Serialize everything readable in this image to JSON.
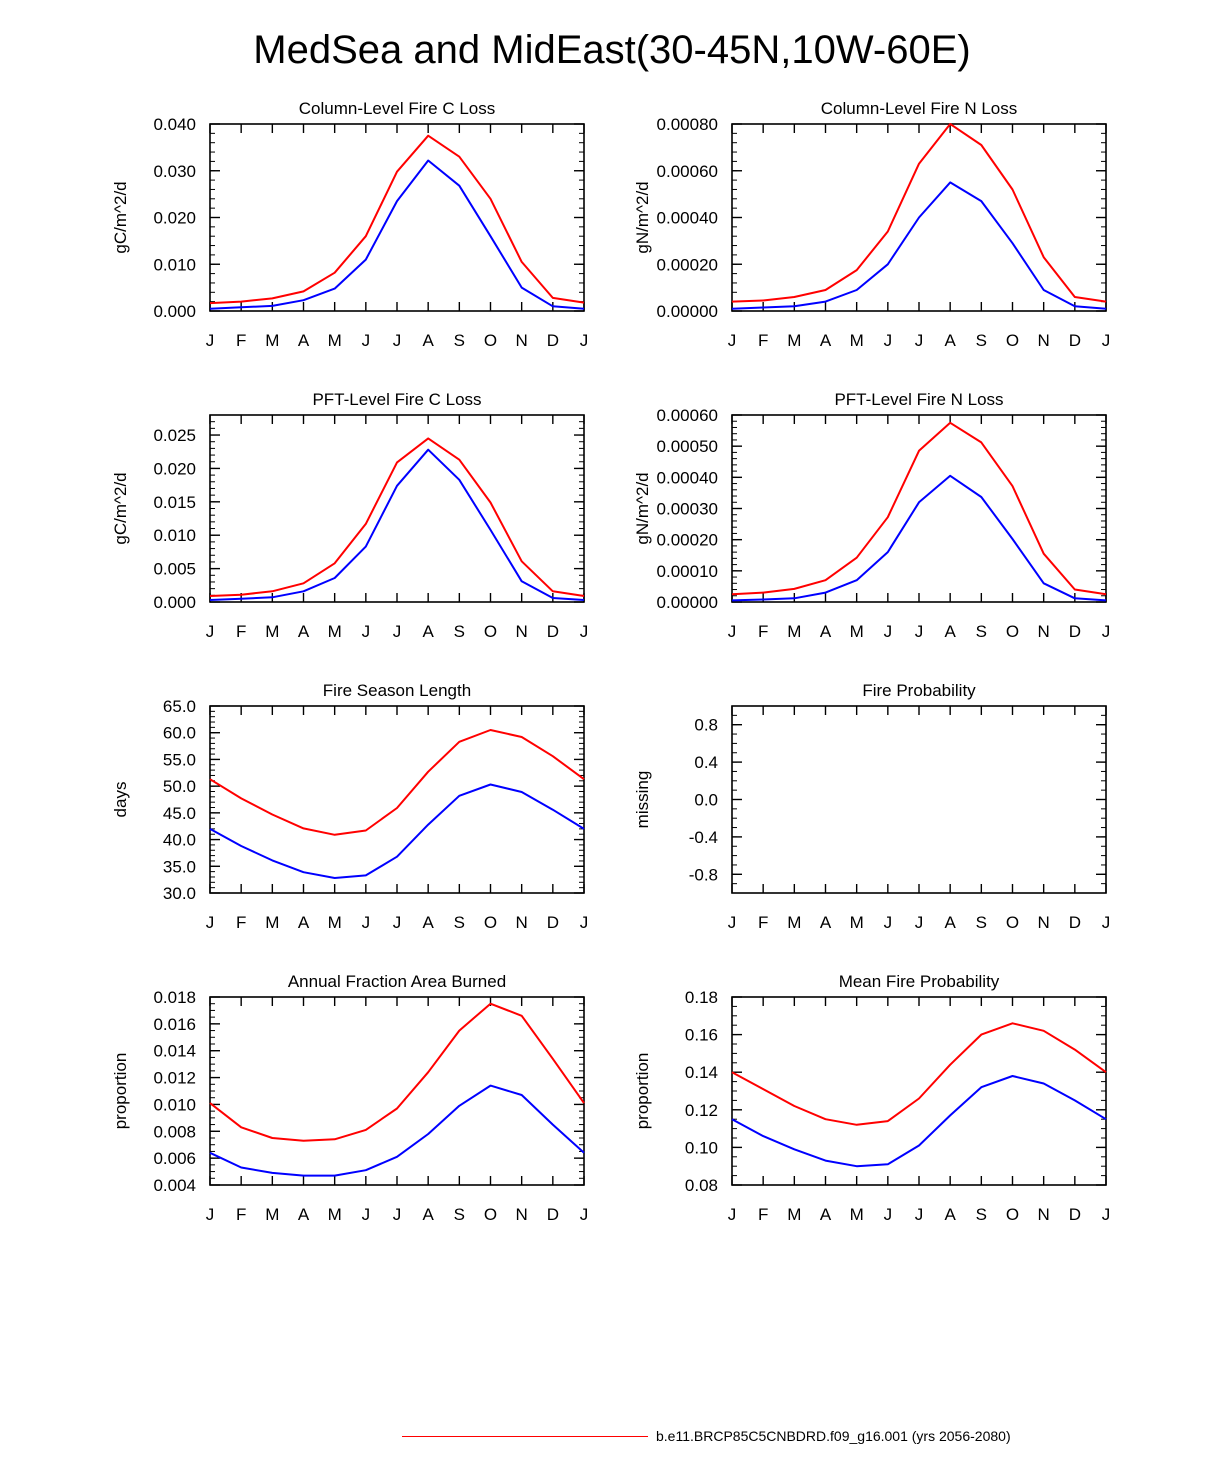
{
  "title": "MedSea and MidEast(30-45N,10W-60E)",
  "legend": {
    "label": "b.e11.BRCP85C5CNBDRD.f09_g16.001 (yrs 2056-2080)",
    "color": "#ff0000"
  },
  "colors": {
    "series_a": "#ff0000",
    "series_b": "#0000ff",
    "axis": "#000000"
  },
  "chart_data": [
    {
      "id": "col-c",
      "type": "line",
      "title": "Column-Level Fire C Loss",
      "ylabel": "gC/m^2/d",
      "categories": [
        "J",
        "F",
        "M",
        "A",
        "M",
        "J",
        "J",
        "A",
        "S",
        "O",
        "N",
        "D",
        "J"
      ],
      "ylim": [
        0,
        0.04
      ],
      "yticks": [
        "0.000",
        "0.010",
        "0.020",
        "0.030",
        "0.040"
      ],
      "minor": 0.002,
      "series": [
        {
          "name": "red",
          "color": "#ff0000",
          "values": [
            0.0017,
            0.002,
            0.0027,
            0.0042,
            0.0082,
            0.016,
            0.0298,
            0.0375,
            0.033,
            0.024,
            0.0105,
            0.0028,
            0.0018
          ]
        },
        {
          "name": "blue",
          "color": "#0000ff",
          "values": [
            0.0005,
            0.0008,
            0.0011,
            0.0023,
            0.0048,
            0.011,
            0.0235,
            0.0322,
            0.0268,
            0.016,
            0.005,
            0.001,
            0.0005
          ]
        }
      ]
    },
    {
      "id": "col-n",
      "type": "line",
      "title": "Column-Level Fire N Loss",
      "ylabel": "gN/m^2/d",
      "categories": [
        "J",
        "F",
        "M",
        "A",
        "M",
        "J",
        "J",
        "A",
        "S",
        "O",
        "N",
        "D",
        "J"
      ],
      "ylim": [
        0,
        0.0008
      ],
      "yticks": [
        "0.00000",
        "0.00020",
        "0.00040",
        "0.00060",
        "0.00080"
      ],
      "minor": 4e-05,
      "series": [
        {
          "name": "red",
          "color": "#ff0000",
          "values": [
            4e-05,
            4.5e-05,
            6e-05,
            9e-05,
            0.000175,
            0.00034,
            0.00063,
            0.0008,
            0.00071,
            0.00052,
            0.00023,
            6e-05,
            4e-05
          ]
        },
        {
          "name": "blue",
          "color": "#0000ff",
          "values": [
            1e-05,
            1.5e-05,
            2e-05,
            4e-05,
            9e-05,
            0.0002,
            0.0004,
            0.00055,
            0.00047,
            0.00029,
            9e-05,
            2e-05,
            1e-05
          ]
        }
      ]
    },
    {
      "id": "pft-c",
      "type": "line",
      "title": "PFT-Level Fire C Loss",
      "ylabel": "gC/m^2/d",
      "categories": [
        "J",
        "F",
        "M",
        "A",
        "M",
        "J",
        "J",
        "A",
        "S",
        "O",
        "N",
        "D",
        "J"
      ],
      "ylim": [
        0,
        0.028
      ],
      "yticks": [
        "0.000",
        "0.005",
        "0.010",
        "0.015",
        "0.020",
        "0.025"
      ],
      "minor": 0.001,
      "series": [
        {
          "name": "red",
          "color": "#ff0000",
          "values": [
            0.0009,
            0.0011,
            0.0016,
            0.0028,
            0.0058,
            0.0117,
            0.0209,
            0.0245,
            0.0213,
            0.0149,
            0.0061,
            0.0016,
            0.0009
          ]
        },
        {
          "name": "blue",
          "color": "#0000ff",
          "values": [
            0.0003,
            0.0005,
            0.0007,
            0.0016,
            0.0036,
            0.0083,
            0.0174,
            0.0228,
            0.0183,
            0.0108,
            0.0031,
            0.0006,
            0.0003
          ]
        }
      ]
    },
    {
      "id": "pft-n",
      "type": "line",
      "title": "PFT-Level Fire N Loss",
      "ylabel": "gN/m^2/d",
      "categories": [
        "J",
        "F",
        "M",
        "A",
        "M",
        "J",
        "J",
        "A",
        "S",
        "O",
        "N",
        "D",
        "J"
      ],
      "ylim": [
        0,
        0.0006
      ],
      "yticks": [
        "0.00000",
        "0.00010",
        "0.00020",
        "0.00030",
        "0.00040",
        "0.00050",
        "0.00060"
      ],
      "minor": 2e-05,
      "series": [
        {
          "name": "red",
          "color": "#ff0000",
          "values": [
            2.5e-05,
            3e-05,
            4.2e-05,
            7e-05,
            0.000142,
            0.000272,
            0.000485,
            0.000575,
            0.000512,
            0.000372,
            0.000155,
            4e-05,
            2.5e-05
          ]
        },
        {
          "name": "blue",
          "color": "#0000ff",
          "values": [
            5e-06,
            8e-06,
            1.2e-05,
            3e-05,
            7e-05,
            0.00016,
            0.00032,
            0.000405,
            0.000337,
            0.000202,
            6e-05,
            1.2e-05,
            5e-06
          ]
        }
      ]
    },
    {
      "id": "season",
      "type": "line",
      "title": "Fire Season Length",
      "ylabel": "days",
      "categories": [
        "J",
        "F",
        "M",
        "A",
        "M",
        "J",
        "J",
        "A",
        "S",
        "O",
        "N",
        "D",
        "J"
      ],
      "ylim": [
        30,
        65
      ],
      "yticks": [
        "30.0",
        "35.0",
        "40.0",
        "45.0",
        "50.0",
        "55.0",
        "60.0",
        "65.0"
      ],
      "minor": 1,
      "series": [
        {
          "name": "red",
          "color": "#ff0000",
          "values": [
            51.3,
            47.7,
            44.7,
            42.1,
            40.9,
            41.7,
            45.9,
            52.7,
            58.3,
            60.5,
            59.2,
            55.6,
            51.3
          ]
        },
        {
          "name": "blue",
          "color": "#0000ff",
          "values": [
            42.0,
            38.8,
            36.1,
            33.9,
            32.8,
            33.3,
            36.8,
            42.8,
            48.2,
            50.3,
            48.9,
            45.6,
            42.0
          ]
        }
      ]
    },
    {
      "id": "prob",
      "type": "line",
      "title": "Fire Probability",
      "ylabel": "missing",
      "categories": [
        "J",
        "F",
        "M",
        "A",
        "M",
        "J",
        "J",
        "A",
        "S",
        "O",
        "N",
        "D",
        "J"
      ],
      "ylim": [
        -1,
        1
      ],
      "yticks": [
        "-0.8",
        "-0.4",
        "0.0",
        "0.4",
        "0.8"
      ],
      "tickvals": [
        -0.8,
        -0.4,
        0.0,
        0.4,
        0.8
      ],
      "minor": 0.1,
      "series": []
    },
    {
      "id": "frac",
      "type": "line",
      "title": "Annual Fraction Area Burned",
      "ylabel": "proportion",
      "categories": [
        "J",
        "F",
        "M",
        "A",
        "M",
        "J",
        "J",
        "A",
        "S",
        "O",
        "N",
        "D",
        "J"
      ],
      "ylim": [
        0.004,
        0.018
      ],
      "yticks": [
        "0.004",
        "0.006",
        "0.008",
        "0.010",
        "0.012",
        "0.014",
        "0.016",
        "0.018"
      ],
      "minor": 0.0005,
      "series": [
        {
          "name": "red",
          "color": "#ff0000",
          "values": [
            0.0101,
            0.0083,
            0.0075,
            0.0073,
            0.0074,
            0.0081,
            0.0097,
            0.0124,
            0.0155,
            0.0175,
            0.0166,
            0.0134,
            0.0101
          ]
        },
        {
          "name": "blue",
          "color": "#0000ff",
          "values": [
            0.0064,
            0.0053,
            0.0049,
            0.0047,
            0.0047,
            0.0051,
            0.0061,
            0.0078,
            0.0099,
            0.0114,
            0.0107,
            0.0085,
            0.0064
          ]
        }
      ]
    },
    {
      "id": "meanprob",
      "type": "line",
      "title": "Mean Fire Probability",
      "ylabel": "proportion",
      "categories": [
        "J",
        "F",
        "M",
        "A",
        "M",
        "J",
        "J",
        "A",
        "S",
        "O",
        "N",
        "D",
        "J"
      ],
      "ylim": [
        0.08,
        0.18
      ],
      "yticks": [
        "0.08",
        "0.10",
        "0.12",
        "0.14",
        "0.16",
        "0.18"
      ],
      "minor": 0.005,
      "series": [
        {
          "name": "red",
          "color": "#ff0000",
          "values": [
            0.14,
            0.131,
            0.122,
            0.115,
            0.112,
            0.114,
            0.126,
            0.144,
            0.16,
            0.166,
            0.162,
            0.152,
            0.14
          ]
        },
        {
          "name": "blue",
          "color": "#0000ff",
          "values": [
            0.115,
            0.106,
            0.099,
            0.093,
            0.09,
            0.091,
            0.101,
            0.117,
            0.132,
            0.138,
            0.134,
            0.125,
            0.115
          ]
        }
      ]
    }
  ]
}
